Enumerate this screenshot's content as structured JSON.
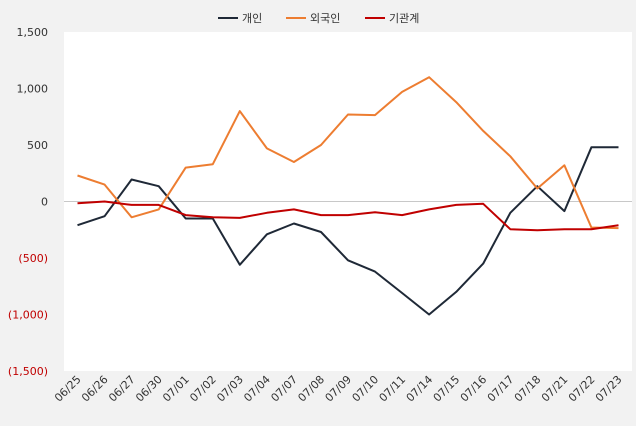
{
  "chart_data": {
    "type": "line",
    "categories": [
      "06/25",
      "06/26",
      "06/27",
      "06/30",
      "07/01",
      "07/02",
      "07/03",
      "07/04",
      "07/07",
      "07/08",
      "07/09",
      "07/10",
      "07/11",
      "07/14",
      "07/15",
      "07/16",
      "07/17",
      "07/18",
      "07/21",
      "07/22",
      "07/23"
    ],
    "series": [
      {
        "name": "개인",
        "color": "#1f2937",
        "values": [
          -210,
          -130,
          195,
          135,
          -150,
          -150,
          -560,
          -290,
          -195,
          -270,
          -520,
          -620,
          -810,
          -1000,
          -800,
          -550,
          -100,
          135,
          -85,
          480,
          480
        ]
      },
      {
        "name": "외국인",
        "color": "#ed7d31",
        "values": [
          230,
          150,
          -140,
          -70,
          300,
          330,
          800,
          470,
          350,
          500,
          770,
          765,
          970,
          1100,
          880,
          625,
          400,
          115,
          320,
          -230,
          -235
        ]
      },
      {
        "name": "기관계",
        "color": "#c00000",
        "values": [
          -15,
          0,
          -30,
          -30,
          -120,
          -140,
          -145,
          -100,
          -70,
          -120,
          -120,
          -95,
          -120,
          -70,
          -30,
          -20,
          -245,
          -255,
          -245,
          -245,
          -210
        ]
      }
    ],
    "yticks": [
      {
        "value": 1500,
        "label": "1,500",
        "color": "#333333"
      },
      {
        "value": 1000,
        "label": "1,000",
        "color": "#333333"
      },
      {
        "value": 500,
        "label": "500",
        "color": "#333333"
      },
      {
        "value": 0,
        "label": "0",
        "color": "#333333"
      },
      {
        "value": -500,
        "label": "(500)",
        "color": "#c00000"
      },
      {
        "value": -1000,
        "label": "(1,000)",
        "color": "#c00000"
      },
      {
        "value": -1500,
        "label": "(1,500)",
        "color": "#c00000"
      }
    ],
    "ylim": [
      -1500,
      1500
    ],
    "grid": false,
    "zero_line": true,
    "legend_position": "top-center",
    "plot_background": "#ffffff",
    "page_background": "#f2f2f2"
  }
}
